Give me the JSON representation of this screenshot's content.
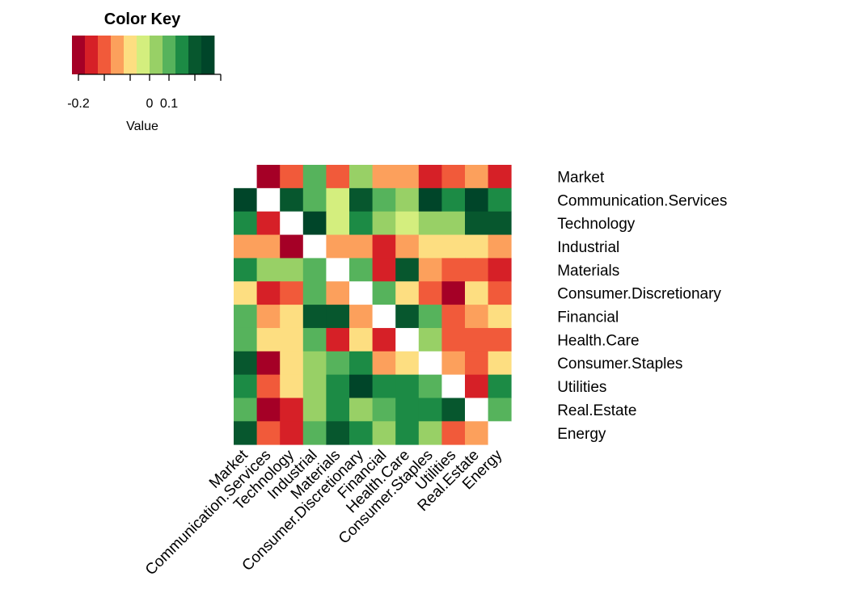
{
  "chart_data": {
    "type": "heatmap",
    "labels": [
      "Market",
      "Communication.Services",
      "Technology",
      "Industrial",
      "Materials",
      "Consumer.Discretionary",
      "Financial",
      "Health.Care",
      "Consumer.Staples",
      "Utilities",
      "Real.Estate",
      "Energy"
    ],
    "matrix": [
      [
        null,
        -0.22,
        -0.14,
        0.06,
        -0.14,
        0.02,
        -0.1,
        -0.1,
        -0.18,
        -0.14,
        -0.1,
        -0.18
      ],
      [
        0.18,
        null,
        0.14,
        0.06,
        -0.02,
        0.14,
        0.06,
        0.02,
        0.18,
        0.1,
        0.18,
        0.1
      ],
      [
        0.1,
        -0.18,
        null,
        0.18,
        -0.02,
        0.1,
        0.02,
        -0.02,
        0.02,
        0.02,
        0.14,
        0.14
      ],
      [
        -0.1,
        -0.1,
        -0.22,
        null,
        -0.1,
        -0.1,
        -0.18,
        -0.1,
        -0.06,
        -0.06,
        -0.06,
        -0.1
      ],
      [
        0.1,
        0.02,
        0.02,
        0.06,
        null,
        0.06,
        -0.18,
        0.14,
        -0.1,
        -0.14,
        -0.14,
        -0.18
      ],
      [
        -0.06,
        -0.18,
        -0.14,
        0.06,
        -0.1,
        null,
        0.06,
        -0.06,
        -0.14,
        -0.22,
        -0.06,
        -0.14
      ],
      [
        0.06,
        -0.1,
        -0.06,
        0.14,
        0.14,
        -0.1,
        null,
        0.14,
        0.06,
        -0.14,
        -0.1,
        -0.06
      ],
      [
        0.06,
        -0.06,
        -0.06,
        0.06,
        -0.18,
        -0.06,
        -0.18,
        null,
        0.02,
        -0.14,
        -0.14,
        -0.14
      ],
      [
        0.14,
        -0.22,
        -0.06,
        0.02,
        0.06,
        0.1,
        -0.1,
        -0.06,
        null,
        -0.1,
        -0.14,
        -0.06
      ],
      [
        0.1,
        -0.14,
        -0.06,
        0.02,
        0.1,
        0.18,
        0.1,
        0.1,
        0.06,
        null,
        -0.18,
        0.1
      ],
      [
        0.06,
        -0.22,
        -0.18,
        0.02,
        0.1,
        0.02,
        0.06,
        0.1,
        0.1,
        0.14,
        null,
        0.06
      ],
      [
        0.14,
        -0.14,
        -0.18,
        0.06,
        0.14,
        0.1,
        0.02,
        0.1,
        0.02,
        -0.14,
        -0.1,
        null
      ]
    ],
    "diagonal_color": "#ffffff",
    "color_key": {
      "title": "Color Key",
      "xlabel": "Value",
      "breaks": [
        -0.24,
        -0.2,
        -0.16,
        -0.12,
        -0.08,
        -0.04,
        0.0,
        0.04,
        0.08,
        0.12,
        0.16,
        0.2
      ],
      "colors": [
        "#a50026",
        "#d62027",
        "#f15a3a",
        "#fca05c",
        "#fdde81",
        "#d4ee7e",
        "#98d066",
        "#56b35c",
        "#1c8b45",
        "#07572e",
        "#004529"
      ],
      "ticks": [
        {
          "value": -0.22,
          "label": "-0.2"
        },
        {
          "value": -0.14,
          "label": ""
        },
        {
          "value": -0.06,
          "label": ""
        },
        {
          "value": 0.0,
          "label": "0"
        },
        {
          "value": 0.06,
          "label": "0.1"
        },
        {
          "value": 0.14,
          "label": ""
        },
        {
          "value": 0.22,
          "label": ""
        }
      ]
    }
  }
}
